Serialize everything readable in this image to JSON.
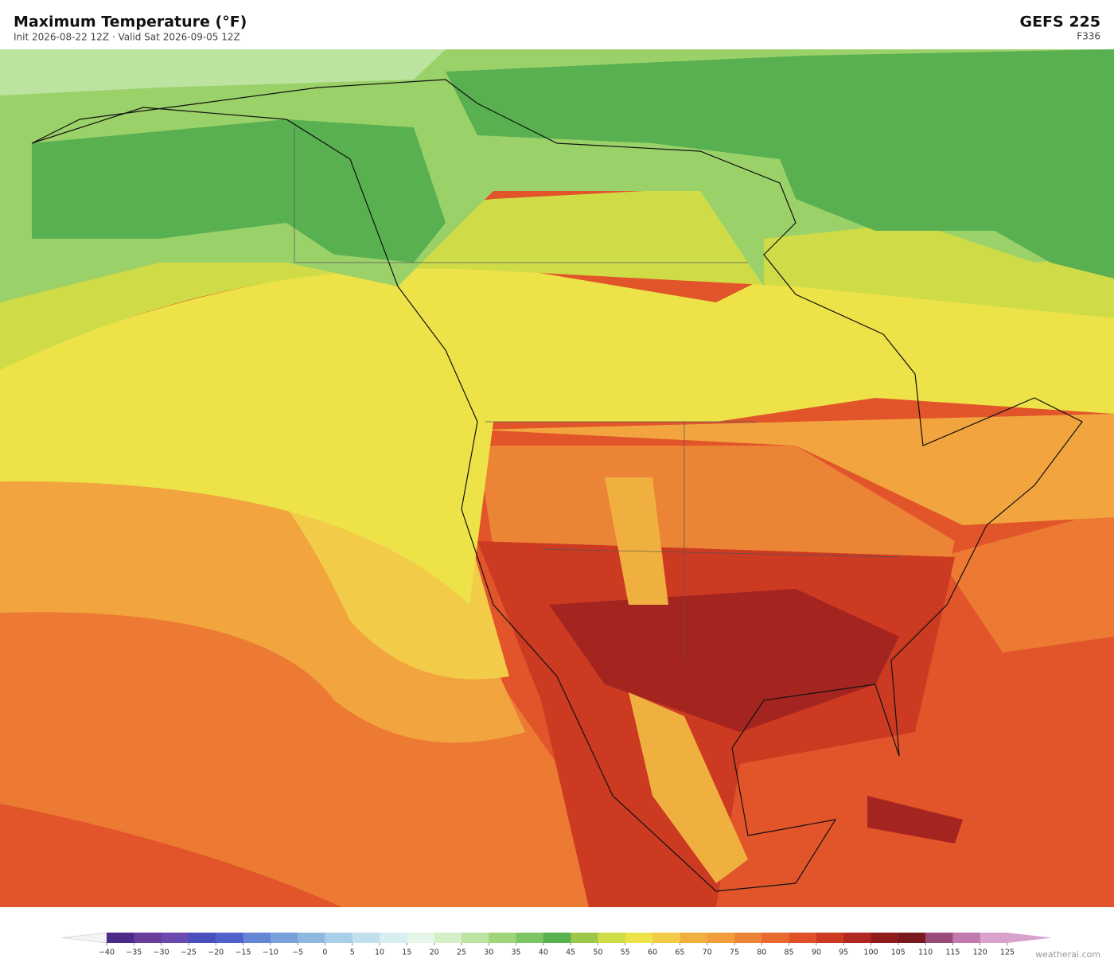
{
  "header": {
    "title": "Maximum Temperature  (°F)",
    "subtitle": "Init 2026-08-22 12Z  ·  Valid Sat 2026-09-05 12Z",
    "model": "GEFS  225",
    "forecast_hour": "F336"
  },
  "colorbar": {
    "ticks": [
      {
        "value": -40,
        "label": "−40"
      },
      {
        "value": -35,
        "label": "−35"
      },
      {
        "value": -30,
        "label": "−30"
      },
      {
        "value": -25,
        "label": "−25"
      },
      {
        "value": -20,
        "label": "−20"
      },
      {
        "value": -15,
        "label": "−15"
      },
      {
        "value": -10,
        "label": "−10"
      },
      {
        "value": -5,
        "label": "−5"
      },
      0,
      5,
      10,
      15,
      20,
      25,
      30,
      35,
      40,
      45,
      50,
      55,
      60,
      65,
      70,
      75,
      80,
      85,
      90,
      95,
      100,
      105,
      110,
      115,
      120,
      125
    ],
    "colors": [
      "#4b2a8a",
      "#6a3d9a",
      "#6b4ab0",
      "#4a4fc0",
      "#5060cc",
      "#6585d5",
      "#7aa0dc",
      "#8fb8e0",
      "#a8cfe8",
      "#c0e0ee",
      "#d8eef2",
      "#e6f5ea",
      "#d4eec8",
      "#bde3a0",
      "#9fd479",
      "#7cc464",
      "#58b050",
      "#9bc848",
      "#cfdc48",
      "#ede348",
      "#f2cc48",
      "#f0b040",
      "#f09e3c",
      "#ec8435",
      "#e86a30",
      "#e05028",
      "#cc3a22",
      "#b02820",
      "#901c1c",
      "#7a1820",
      "#9a4c78",
      "#c07ab0",
      "#d8a2cc"
    ],
    "under_color": "#f4f4f4",
    "over_color": "#d8a2cc"
  },
  "credit": "weatherai.com"
}
